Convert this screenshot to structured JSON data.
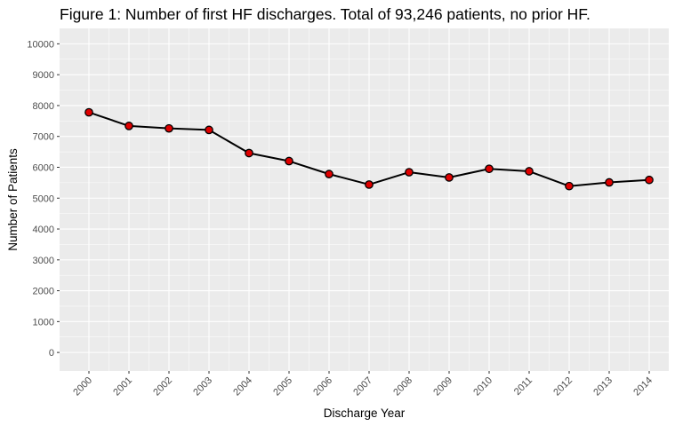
{
  "chart_data": {
    "type": "line",
    "title": "Figure 1: Number of first HF discharges. Total of 93,246 patients, no prior HF.",
    "xlabel": "Discharge Year",
    "ylabel": "Number of Patients",
    "x": [
      "2000",
      "2001",
      "2002",
      "2003",
      "2004",
      "2005",
      "2006",
      "2007",
      "2008",
      "2009",
      "2010",
      "2011",
      "2012",
      "2013",
      "2014"
    ],
    "series": [
      {
        "values": [
          7780,
          7340,
          7260,
          7210,
          6460,
          6200,
          5780,
          5440,
          5840,
          5670,
          5950,
          5870,
          5390,
          5510,
          5590
        ]
      }
    ],
    "ylim": [
      -600,
      10500
    ],
    "yticks": [
      0,
      1000,
      2000,
      3000,
      4000,
      5000,
      6000,
      7000,
      8000,
      9000,
      10000
    ],
    "grid": true,
    "colors": {
      "panel": "#ebebeb",
      "grid": "#ffffff",
      "line": "#000000",
      "marker_fill": "#e00000",
      "marker_stroke": "#000000"
    }
  }
}
